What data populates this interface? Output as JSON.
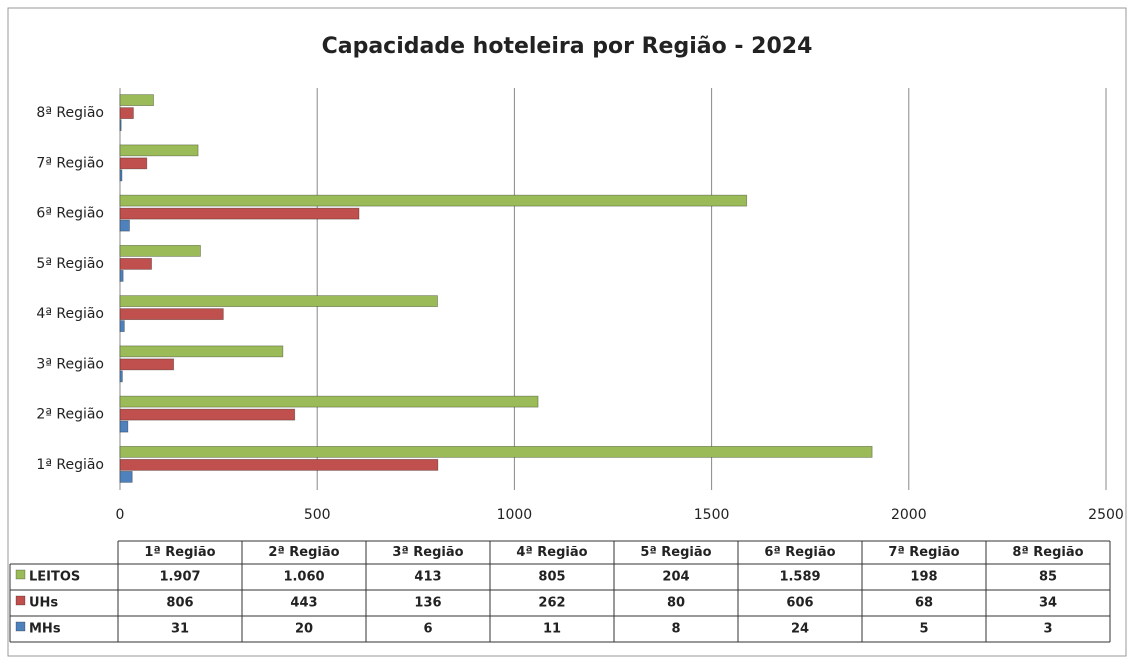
{
  "chart_data": {
    "type": "bar",
    "orientation": "horizontal",
    "title": "Capacidade hoteleira por Região - 2024",
    "categories": [
      "1ª Região",
      "2ª Região",
      "3ª Região",
      "4ª Região",
      "5ª Região",
      "6ª Região",
      "7ª Região",
      "8ª Região"
    ],
    "series": [
      {
        "name": "LEITOS",
        "color": "#9bbb59",
        "values": [
          1907,
          1060,
          413,
          805,
          204,
          1589,
          198,
          85
        ],
        "value_labels": [
          "1.907",
          "1.060",
          "413",
          "805",
          "204",
          "1.589",
          "198",
          "85"
        ]
      },
      {
        "name": "UHs",
        "color": "#c0504d",
        "values": [
          806,
          443,
          136,
          262,
          80,
          606,
          68,
          34
        ],
        "value_labels": [
          "806",
          "443",
          "136",
          "262",
          "80",
          "606",
          "68",
          "34"
        ]
      },
      {
        "name": "MHs",
        "color": "#4f81bd",
        "values": [
          31,
          20,
          6,
          11,
          8,
          24,
          5,
          3
        ],
        "value_labels": [
          "31",
          "20",
          "6",
          "11",
          "8",
          "24",
          "5",
          "3"
        ]
      }
    ],
    "xlim": [
      0,
      2500
    ],
    "xticks": [
      0,
      500,
      1000,
      1500,
      2000,
      2500
    ],
    "grid": true,
    "data_table": true
  }
}
